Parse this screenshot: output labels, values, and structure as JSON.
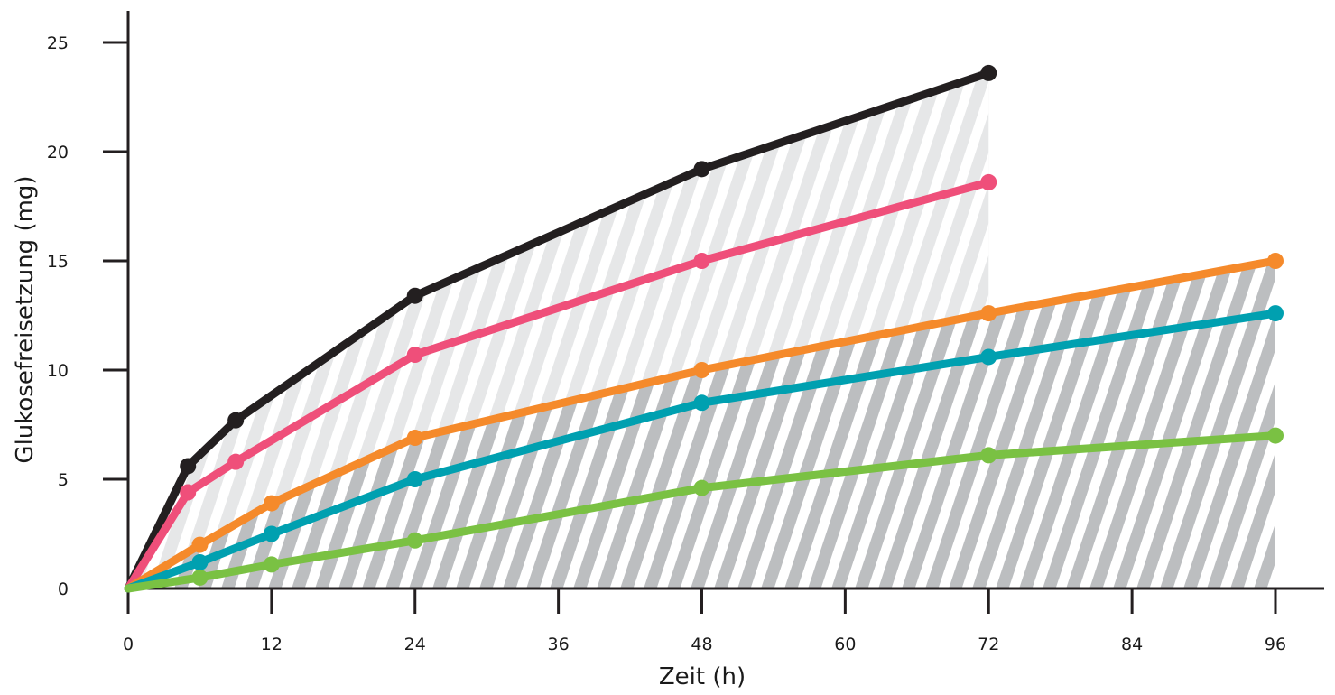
{
  "chart_data": {
    "type": "line",
    "xlabel": "Zeit (h)",
    "ylabel": "Glukosefreisetzung (mg)",
    "xlim": [
      0,
      96
    ],
    "ylim": [
      0,
      25
    ],
    "xticks": [
      0,
      12,
      24,
      36,
      48,
      60,
      72,
      84,
      96
    ],
    "yticks": [
      0,
      5,
      10,
      15,
      20,
      25
    ],
    "grid": false,
    "legend": "none",
    "shaded_regions": [
      {
        "x": [
          0,
          72
        ],
        "upper_series": 0,
        "fill": "#e6e7e8",
        "hatch": "#ffffff"
      },
      {
        "x": [
          0,
          96
        ],
        "upper_series": 2,
        "fill": "#bcbec0",
        "hatch": "#ffffff"
      }
    ],
    "series": [
      {
        "color": "#231f20",
        "points": [
          [
            0,
            0
          ],
          [
            5,
            5.6
          ],
          [
            9,
            7.7
          ],
          [
            24,
            13.4
          ],
          [
            48,
            19.2
          ],
          [
            72,
            23.6
          ]
        ]
      },
      {
        "color": "#ef4f7a",
        "points": [
          [
            0,
            0
          ],
          [
            5,
            4.4
          ],
          [
            9,
            5.8
          ],
          [
            24,
            10.7
          ],
          [
            48,
            15.0
          ],
          [
            72,
            18.6
          ]
        ]
      },
      {
        "color": "#f58a2b",
        "points": [
          [
            0,
            0
          ],
          [
            6,
            2.0
          ],
          [
            12,
            3.9
          ],
          [
            24,
            6.9
          ],
          [
            48,
            10.0
          ],
          [
            72,
            12.6
          ],
          [
            96,
            15.0
          ]
        ]
      },
      {
        "color": "#00a0b0",
        "points": [
          [
            0,
            0
          ],
          [
            6,
            1.2
          ],
          [
            12,
            2.5
          ],
          [
            24,
            5.0
          ],
          [
            48,
            8.5
          ],
          [
            72,
            10.6
          ],
          [
            96,
            12.6
          ]
        ]
      },
      {
        "color": "#7ac143",
        "points": [
          [
            0,
            0
          ],
          [
            6,
            0.5
          ],
          [
            12,
            1.1
          ],
          [
            24,
            2.2
          ],
          [
            48,
            4.6
          ],
          [
            72,
            6.1
          ],
          [
            96,
            7.0
          ]
        ]
      }
    ]
  }
}
